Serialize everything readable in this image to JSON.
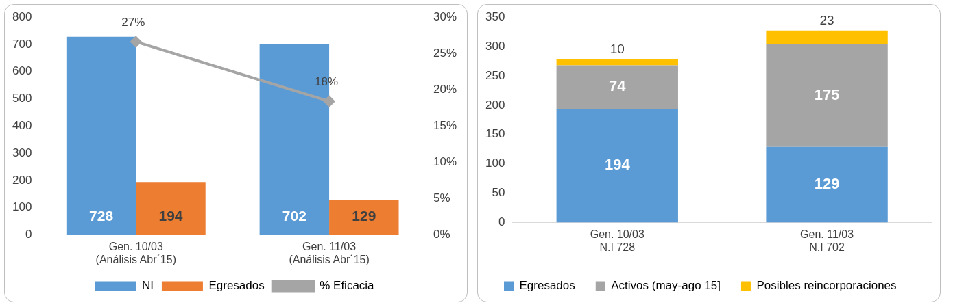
{
  "chart_data": [
    {
      "type": "bar",
      "categories": [
        "Gen. 10/03\n(Análisis Abr´15)",
        "Gen. 11/03\n(Análisis Abr´15)"
      ],
      "series": [
        {
          "name": "NI",
          "color": "#5b9bd5",
          "values": [
            728,
            702
          ],
          "value_labels": [
            "728",
            "702"
          ]
        },
        {
          "name": "Egresados",
          "color": "#ed7d31",
          "values": [
            194,
            129
          ],
          "value_labels": [
            "194",
            "129"
          ]
        },
        {
          "name": "% Eficacia",
          "type": "line",
          "axis": "y2",
          "color": "#a5a5a5",
          "values": [
            26.6,
            18.4
          ],
          "value_labels": [
            "27%",
            "18%"
          ]
        }
      ],
      "ylim": [
        0,
        800
      ],
      "yticks": [
        0,
        100,
        200,
        300,
        400,
        500,
        600,
        700,
        800
      ],
      "y2lim": [
        0,
        30
      ],
      "y2ticks": [
        {
          "value": 0,
          "label": "0%"
        },
        {
          "value": 5,
          "label": "5%"
        },
        {
          "value": 10,
          "label": "10%"
        },
        {
          "value": 15,
          "label": "15%"
        },
        {
          "value": 20,
          "label": "20%"
        },
        {
          "value": 25,
          "label": "25%"
        },
        {
          "value": 30,
          "label": "30%"
        }
      ],
      "grid": false,
      "legend": "bottom",
      "marker": "diamond",
      "line_style": "solid"
    },
    {
      "type": "bar",
      "stacked": true,
      "categories": [
        "Gen. 10/03\nN.I 728",
        "Gen. 11/03\nN.I 702"
      ],
      "series": [
        {
          "name": "Egresados",
          "color": "#5b9bd5",
          "values": [
            194,
            129
          ]
        },
        {
          "name": "Activos (may-ago 15]",
          "color": "#a5a5a5",
          "values": [
            74,
            175
          ]
        },
        {
          "name": "Posibles reincorporaciones",
          "color": "#ffc000",
          "values": [
            10,
            23
          ]
        }
      ],
      "ylim": [
        0,
        350
      ],
      "yticks": [
        0,
        50,
        100,
        150,
        200,
        250,
        300,
        350
      ],
      "grid": false,
      "legend": "bottom",
      "data_labels": true
    }
  ]
}
